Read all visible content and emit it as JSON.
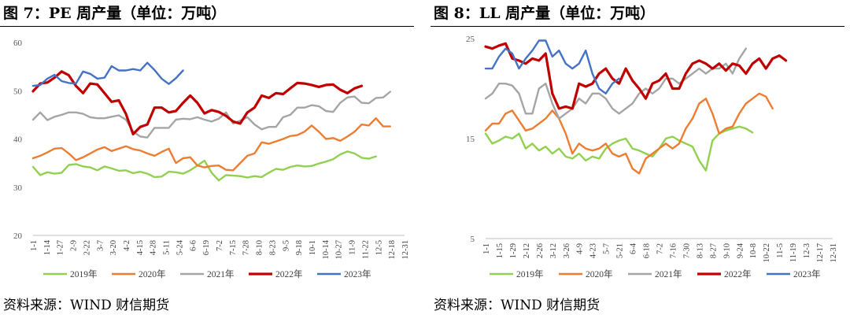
{
  "charts": [
    {
      "title": "图 7：PE 周产量（单位：万吨）",
      "source": "资料来源：WIND  财信期货",
      "chart_data": {
        "type": "line",
        "ylim": [
          20,
          60
        ],
        "yticks": [
          20,
          30,
          40,
          50,
          60
        ],
        "grid": false,
        "legend_position": "bottom",
        "n_weeks": 53,
        "x_tick_labels": [
          "1-1",
          "1-14",
          "1-27",
          "2-9",
          "2-22",
          "3-7",
          "3-20",
          "4-2",
          "4-15",
          "4-28",
          "5-11",
          "5-24",
          "6-6",
          "6-19",
          "7-2",
          "7-15",
          "7-28",
          "8-10",
          "8-23",
          "9-5",
          "9-18",
          "10-1",
          "10-14",
          "10-27",
          "11-9",
          "11-22",
          "12-5",
          "12-18",
          "12-31"
        ],
        "series": [
          {
            "name": "2019年",
            "color": "#92d050",
            "values": [
              34.2,
              32.5,
              33.1,
              32.8,
              33.0,
              34.6,
              34.8,
              34.3,
              34.1,
              33.5,
              34.3,
              33.9,
              33.4,
              33.5,
              32.9,
              33.2,
              32.8,
              32.1,
              32.2,
              33.2,
              33.1,
              32.8,
              33.5,
              34.5,
              35.5,
              33.0,
              31.4,
              32.5,
              32.4,
              32.3,
              32.0,
              32.3,
              32.1,
              33.0,
              33.8,
              33.6,
              34.2,
              34.5,
              34.3,
              34.4,
              34.9,
              35.3,
              35.8,
              36.8,
              37.4,
              37.0,
              36.1,
              35.9,
              36.4,
              null,
              null,
              null,
              null
            ]
          },
          {
            "name": "2020年",
            "color": "#ed7d31",
            "values": [
              36.0,
              36.5,
              37.2,
              38.0,
              38.1,
              37.0,
              35.6,
              36.2,
              37.0,
              37.8,
              38.3,
              37.5,
              38.0,
              38.5,
              37.9,
              37.6,
              37.0,
              36.5,
              37.3,
              38.0,
              35.0,
              36.0,
              36.2,
              34.5,
              34.1,
              34.4,
              34.5,
              33.6,
              33.5,
              35.0,
              36.5,
              37.0,
              39.3,
              39.0,
              39.5,
              40.0,
              40.6,
              40.8,
              41.5,
              42.8,
              41.5,
              40.0,
              40.2,
              39.6,
              40.5,
              41.5,
              43.0,
              42.8,
              44.3,
              42.6,
              42.6,
              null,
              null
            ]
          },
          {
            "name": "2021年",
            "color": "#a5a5a5",
            "values": [
              44.0,
              45.5,
              43.9,
              44.6,
              45.0,
              45.5,
              45.5,
              45.2,
              44.5,
              44.3,
              44.3,
              44.6,
              44.9,
              44.0,
              41.5,
              40.5,
              40.3,
              42.3,
              42.3,
              42.3,
              44.0,
              44.2,
              44.1,
              44.5,
              44.0,
              43.6,
              44.2,
              45.5,
              43.2,
              43.8,
              44.5,
              43.0,
              42.0,
              42.5,
              42.5,
              44.5,
              45.0,
              46.5,
              46.5,
              47.0,
              46.8,
              45.8,
              45.6,
              47.5,
              48.6,
              48.8,
              47.5,
              47.4,
              48.5,
              48.6,
              49.8,
              null,
              null
            ]
          },
          {
            "name": "2022年",
            "color": "#c00000",
            "values": [
              49.9,
              51.5,
              51.7,
              52.7,
              54.0,
              53.2,
              51.0,
              49.5,
              51.5,
              51.3,
              49.5,
              47.7,
              48.0,
              45.2,
              41.0,
              42.5,
              43.0,
              46.5,
              46.5,
              45.5,
              45.8,
              47.5,
              49.0,
              47.5,
              45.3,
              46.0,
              45.6,
              44.8,
              43.6,
              43.2,
              45.5,
              46.5,
              49.0,
              48.5,
              49.5,
              49.3,
              50.5,
              51.6,
              51.5,
              51.2,
              50.8,
              51.2,
              51.3,
              50.2,
              49.5,
              50.5,
              51.0,
              null,
              null,
              null,
              null,
              null,
              null
            ]
          },
          {
            "name": "2023年",
            "color": "#4472c4",
            "values": [
              51.0,
              51.2,
              52.5,
              53.3,
              52.0,
              51.6,
              51.5,
              54.0,
              53.5,
              52.5,
              52.7,
              55.1,
              54.2,
              54.2,
              54.5,
              54.2,
              55.8,
              54.3,
              52.5,
              51.4,
              52.6,
              54.2,
              null,
              null,
              null,
              null,
              null,
              null,
              null,
              null,
              null,
              null,
              null,
              null,
              null,
              null,
              null,
              null,
              null,
              null,
              null,
              null,
              null,
              null,
              null,
              null,
              null,
              null,
              null,
              null,
              null,
              null,
              null
            ]
          }
        ]
      }
    },
    {
      "title": "图 8：LL 周产量（单位：万吨）",
      "source": "资料来源：WIND  财信期货",
      "chart_data": {
        "type": "line",
        "ylim": [
          5,
          25
        ],
        "yticks": [
          5,
          15,
          25
        ],
        "grid": false,
        "legend_position": "bottom",
        "n_weeks": 53,
        "x_tick_labels": [
          "1-1",
          "1-15",
          "1-29",
          "2-12",
          "2-26",
          "3-12",
          "3-26",
          "4-9",
          "4-23",
          "5-7",
          "5-21",
          "6-4",
          "6-18",
          "7-2",
          "7-16",
          "7-30",
          "8-13",
          "8-27",
          "9-10",
          "9-24",
          "10-8",
          "10-22",
          "11-5",
          "11-19",
          "12-3",
          "12-17",
          "12-31"
        ],
        "series": [
          {
            "name": "2019年",
            "color": "#92d050",
            "values": [
              15.5,
              14.5,
              14.8,
              15.2,
              15.0,
              15.5,
              14.0,
              14.5,
              13.8,
              14.2,
              13.5,
              14.0,
              13.2,
              13.0,
              13.5,
              12.8,
              13.2,
              13.0,
              14.0,
              14.5,
              14.8,
              15.0,
              14.0,
              13.8,
              13.5,
              13.2,
              14.0,
              15.0,
              15.2,
              14.8,
              14.5,
              14.2,
              12.8,
              11.8,
              14.8,
              15.5,
              15.8,
              16.0,
              16.2,
              16.0,
              15.6,
              null,
              null,
              null,
              null,
              null,
              null,
              null,
              null,
              null,
              null,
              null,
              null
            ]
          },
          {
            "name": "2020年",
            "color": "#ed7d31",
            "values": [
              15.8,
              16.5,
              16.5,
              17.5,
              17.8,
              16.8,
              15.8,
              16.0,
              16.5,
              17.0,
              17.8,
              17.0,
              15.5,
              13.5,
              14.5,
              14.0,
              13.8,
              14.0,
              14.5,
              13.5,
              13.2,
              13.5,
              12.0,
              11.5,
              13.0,
              13.5,
              14.0,
              14.5,
              14.0,
              14.5,
              16.0,
              17.0,
              18.5,
              19.0,
              17.5,
              15.5,
              16.0,
              16.2,
              17.5,
              18.5,
              19.0,
              19.5,
              19.2,
              18.0,
              null,
              null,
              null,
              null,
              null,
              null,
              null,
              null,
              null
            ]
          },
          {
            "name": "2021年",
            "color": "#a5a5a5",
            "values": [
              19.0,
              19.5,
              20.5,
              20.5,
              20.3,
              19.5,
              17.5,
              17.5,
              20.0,
              20.5,
              18.5,
              17.0,
              17.5,
              18.0,
              19.0,
              18.5,
              19.5,
              19.5,
              19.0,
              18.0,
              17.5,
              18.0,
              18.5,
              19.5,
              20.0,
              19.5,
              20.0,
              21.0,
              21.0,
              20.5,
              21.0,
              21.5,
              22.0,
              21.5,
              22.0,
              22.0,
              22.5,
              21.5,
              23.0,
              24.0,
              null,
              null,
              null,
              null,
              null,
              null,
              null,
              null,
              null,
              null,
              null,
              null,
              null
            ]
          },
          {
            "name": "2022年",
            "color": "#c00000",
            "values": [
              24.2,
              24.0,
              24.3,
              24.5,
              23.0,
              22.8,
              22.5,
              23.0,
              22.8,
              23.5,
              19.5,
              18.0,
              18.2,
              18.0,
              20.5,
              20.2,
              20.5,
              21.5,
              22.0,
              21.0,
              20.5,
              22.0,
              20.8,
              20.0,
              19.0,
              20.5,
              20.8,
              21.5,
              20.0,
              20.0,
              21.5,
              22.5,
              22.8,
              22.5,
              22.0,
              22.5,
              21.8,
              22.5,
              22.3,
              21.5,
              22.5,
              23.0,
              22.0,
              23.0,
              23.3,
              22.8,
              null,
              null,
              null,
              null,
              null,
              null,
              null
            ]
          },
          {
            "name": "2023年",
            "color": "#4472c4",
            "values": [
              22.0,
              22.0,
              23.2,
              24.0,
              23.5,
              22.0,
              23.0,
              23.8,
              24.8,
              24.8,
              23.2,
              23.8,
              22.5,
              22.0,
              22.5,
              23.8,
              21.5,
              20.0,
              19.5,
              20.5,
              21.0,
              null,
              null,
              null,
              null,
              null,
              null,
              null,
              null,
              null,
              null,
              null,
              null,
              null,
              null,
              null,
              null,
              null,
              null,
              null,
              null,
              null,
              null,
              null,
              null,
              null,
              null,
              null,
              null,
              null,
              null,
              null,
              null
            ]
          }
        ]
      }
    }
  ]
}
